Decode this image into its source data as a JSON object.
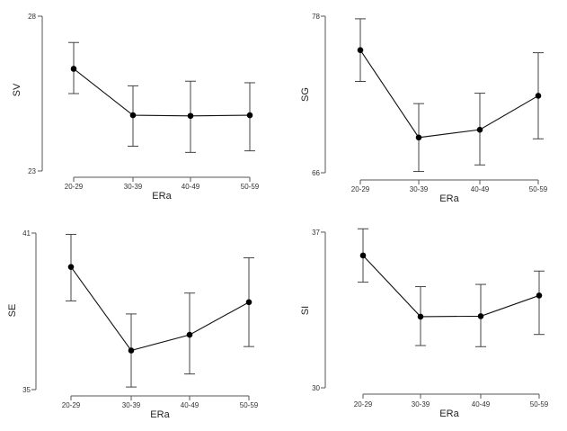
{
  "chart_data": [
    {
      "type": "line",
      "ylabel": "SV",
      "xlabel": "ERa",
      "categories": [
        "20-29",
        "30-39",
        "40-49",
        "50-59"
      ],
      "values": [
        26.3,
        24.8,
        24.78,
        24.8
      ],
      "error_low": [
        25.5,
        23.8,
        23.6,
        23.65
      ],
      "error_high": [
        27.15,
        25.75,
        25.9,
        25.85
      ],
      "ylim": [
        23,
        28
      ],
      "yticks": [
        "23",
        "28"
      ]
    },
    {
      "type": "line",
      "ylabel": "SG",
      "xlabel": "ERa",
      "categories": [
        "20-29",
        "30-39",
        "40-49",
        "50-59"
      ],
      "values": [
        75.4,
        68.7,
        69.3,
        71.9
      ],
      "error_low": [
        73.0,
        66.1,
        66.6,
        68.6
      ],
      "error_high": [
        77.8,
        71.3,
        72.1,
        75.2
      ],
      "ylim": [
        66,
        78
      ],
      "yticks": [
        "66",
        "78"
      ]
    },
    {
      "type": "line",
      "ylabel": "SE",
      "xlabel": "ERa",
      "categories": [
        "20-29",
        "30-39",
        "40-49",
        "50-59"
      ],
      "values": [
        39.7,
        36.5,
        37.1,
        38.35
      ],
      "error_low": [
        38.4,
        35.1,
        35.6,
        36.65
      ],
      "error_high": [
        40.95,
        37.9,
        38.7,
        40.05
      ],
      "ylim": [
        35,
        41
      ],
      "yticks": [
        "35",
        "41"
      ]
    },
    {
      "type": "line",
      "ylabel": "SI",
      "xlabel": "ERa",
      "categories": [
        "20-29",
        "30-39",
        "40-49",
        "50-59"
      ],
      "values": [
        35.95,
        33.2,
        33.22,
        34.15
      ],
      "error_low": [
        34.75,
        31.9,
        31.85,
        32.4
      ],
      "error_high": [
        37.15,
        34.55,
        34.65,
        35.25
      ],
      "ylim": [
        30,
        37
      ],
      "yticks": [
        "30",
        "37"
      ]
    }
  ]
}
